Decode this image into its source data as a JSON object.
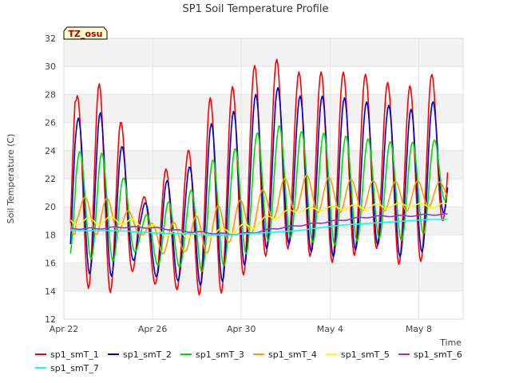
{
  "chart_data": {
    "type": "line",
    "title": "SP1 Soil Temperature Profile",
    "xlabel": "Time",
    "ylabel": "Soil Temperature (C)",
    "badge": "TZ_osu",
    "xlim": [
      0,
      18
    ],
    "ylim": [
      12,
      32
    ],
    "yticks": [
      12,
      14,
      16,
      18,
      20,
      22,
      24,
      26,
      28,
      30,
      32
    ],
    "xticks": [
      {
        "value": 0,
        "label": "Apr 22"
      },
      {
        "value": 4,
        "label": "Apr 26"
      },
      {
        "value": 8,
        "label": "Apr 30"
      },
      {
        "value": 12,
        "label": "May 4"
      },
      {
        "value": 16,
        "label": "May 8"
      }
    ],
    "grid": true,
    "legend_position": "bottom",
    "series_model": {
      "sample_step_days": 0.05,
      "day_start": 0.3,
      "day_end": 17.3,
      "diurnal_peak_phase_days": 0.6
    },
    "series": [
      {
        "name": "sp1_smT_1",
        "color": "#ff0000",
        "lag_days": 0.0,
        "peaks": [
          27.8,
          29.0,
          26.6,
          20.5,
          22.6,
          23.6,
          27.7,
          28.4,
          30.0,
          30.6,
          29.6,
          29.6,
          29.6,
          29.5,
          28.9,
          28.5,
          29.7,
          27.0
        ],
        "mins": [
          16.0,
          13.0,
          14.5,
          16.0,
          13.5,
          14.5,
          13.2,
          14.3,
          15.7,
          17.0,
          17.0,
          16.1,
          16.0,
          16.9,
          17.1,
          15.1,
          16.8,
          20.5
        ]
      },
      {
        "name": "sp1_smT_2",
        "color": "#0000cc",
        "lag_days": 0.05,
        "peaks": [
          26.2,
          27.0,
          25.0,
          20.0,
          21.8,
          22.3,
          25.8,
          26.6,
          27.9,
          28.6,
          27.9,
          27.9,
          27.8,
          27.5,
          27.3,
          26.8,
          27.8,
          25.7
        ],
        "mins": [
          16.8,
          14.4,
          15.4,
          16.6,
          14.2,
          15.0,
          14.1,
          15.0,
          16.3,
          17.4,
          17.3,
          16.5,
          16.4,
          17.2,
          17.3,
          16.0,
          17.2,
          20.9
        ]
      },
      {
        "name": "sp1_smT_3",
        "color": "#00dd00",
        "lag_days": 0.12,
        "peaks": [
          23.9,
          24.1,
          22.8,
          19.2,
          20.3,
          20.6,
          23.2,
          23.9,
          25.1,
          25.9,
          25.4,
          25.3,
          25.1,
          24.9,
          24.7,
          24.5,
          25.0,
          23.9
        ],
        "mins": [
          17.3,
          15.9,
          16.2,
          17.0,
          15.4,
          15.8,
          15.2,
          16.0,
          16.9,
          17.8,
          17.8,
          17.3,
          17.2,
          17.7,
          17.8,
          17.5,
          18.3,
          21.4
        ]
      },
      {
        "name": "sp1_smT_4",
        "color": "#ff9900",
        "lag_days": 0.35,
        "peaks": [
          20.6,
          20.8,
          20.4,
          18.8,
          18.9,
          18.9,
          19.9,
          20.3,
          20.7,
          21.8,
          22.3,
          22.2,
          22.0,
          21.9,
          21.8,
          21.8,
          21.9,
          21.6
        ],
        "mins": [
          18.8,
          18.0,
          18.2,
          18.0,
          16.6,
          16.8,
          16.7,
          17.5,
          18.1,
          19.2,
          19.7,
          19.6,
          19.6,
          19.7,
          19.7,
          19.7,
          20.0,
          20.6
        ]
      },
      {
        "name": "sp1_smT_5",
        "color": "#ffff00",
        "lag_days": 0.5,
        "peaks": [
          19.1,
          19.3,
          19.3,
          19.0,
          18.5,
          18.3,
          18.3,
          18.6,
          18.9,
          19.6,
          19.9,
          20.0,
          20.1,
          20.2,
          20.2,
          20.3,
          20.2,
          20.3
        ],
        "mins": [
          18.7,
          18.7,
          18.8,
          18.5,
          17.9,
          17.8,
          17.8,
          18.1,
          18.4,
          19.1,
          19.6,
          19.7,
          19.8,
          19.8,
          19.9,
          20.0,
          19.9,
          20.0
        ]
      },
      {
        "name": "sp1_smT_6",
        "color": "#9933cc",
        "lag_days": 0.6,
        "peaks": [
          18.5,
          18.5,
          18.6,
          18.6,
          18.5,
          18.3,
          18.2,
          18.1,
          18.2,
          18.5,
          18.7,
          18.9,
          19.1,
          19.3,
          19.4,
          19.4,
          19.5,
          19.5
        ],
        "mins": [
          18.4,
          18.4,
          18.5,
          18.5,
          18.4,
          18.2,
          18.1,
          18.0,
          18.1,
          18.4,
          18.6,
          18.8,
          19.0,
          19.2,
          19.3,
          19.3,
          19.4,
          19.4
        ]
      },
      {
        "name": "sp1_smT_7",
        "color": "#00ffff",
        "lag_days": 0.0,
        "peaks": [
          18.3,
          18.3,
          18.3,
          18.2,
          18.1,
          18.1,
          18.0,
          18.0,
          18.1,
          18.2,
          18.3,
          18.5,
          18.7,
          18.8,
          18.9,
          19.0,
          19.1,
          19.1
        ],
        "mins": [
          18.3,
          18.3,
          18.3,
          18.2,
          18.1,
          18.1,
          18.0,
          18.0,
          18.1,
          18.2,
          18.3,
          18.5,
          18.7,
          18.8,
          18.9,
          19.0,
          19.1,
          19.1
        ]
      }
    ]
  }
}
